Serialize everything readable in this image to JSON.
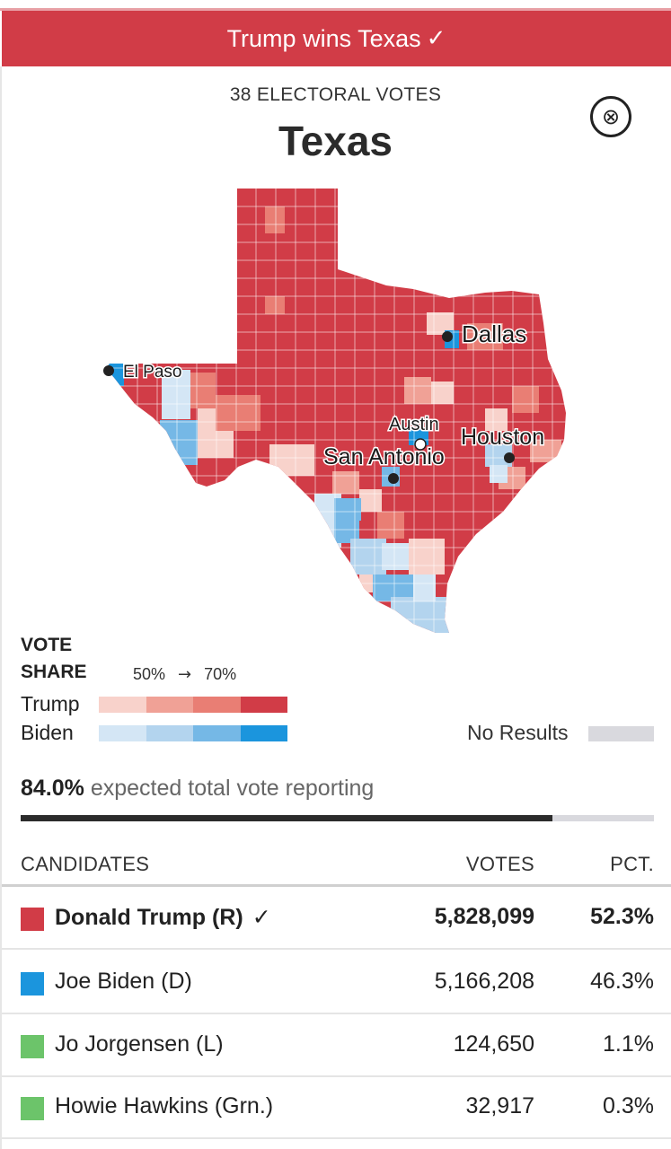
{
  "banner": {
    "text": "Trump wins Texas",
    "check": "✓"
  },
  "header": {
    "electoral_votes": "38 ELECTORAL VOTES",
    "state": "Texas",
    "close_icon": "⊗"
  },
  "map": {
    "cities": [
      {
        "name": "Dallas",
        "marker": "dark"
      },
      {
        "name": "El Paso",
        "marker": "dark"
      },
      {
        "name": "Austin",
        "marker": "white"
      },
      {
        "name": "Houston",
        "marker": "dark"
      },
      {
        "name": "San Antonio",
        "marker": "dark"
      }
    ]
  },
  "legend": {
    "title_line1": "VOTE",
    "title_line2": "SHARE",
    "scale_low": "50%",
    "scale_arrow": "→",
    "scale_high": "70%",
    "trump_label": "Trump",
    "biden_label": "Biden",
    "trump_colors": [
      "#f8d2cb",
      "#f0a196",
      "#e97e74",
      "#d13c47"
    ],
    "biden_colors": [
      "#d4e6f5",
      "#b3d4ee",
      "#75b8e6",
      "#1b95dd"
    ],
    "no_results_label": "No Results",
    "no_results_color": "#d9d9de"
  },
  "reporting": {
    "percent": "84.0%",
    "text": "expected total vote reporting",
    "fraction": 0.84
  },
  "table": {
    "headers": {
      "candidates": "CANDIDATES",
      "votes": "VOTES",
      "pct": "PCT."
    },
    "rows": [
      {
        "name": "Donald Trump (R)",
        "winner": true,
        "check": "✓",
        "votes": "5,828,099",
        "pct": "52.3%",
        "color": "#d13c47"
      },
      {
        "name": "Joe Biden (D)",
        "winner": false,
        "votes": "5,166,208",
        "pct": "46.3%",
        "color": "#1b95dd"
      },
      {
        "name": "Jo Jorgensen (L)",
        "winner": false,
        "votes": "124,650",
        "pct": "1.1%",
        "color": "#6cc46a"
      },
      {
        "name": "Howie Hawkins (Grn.)",
        "winner": false,
        "votes": "32,917",
        "pct": "0.3%",
        "color": "#6cc46a"
      }
    ]
  }
}
